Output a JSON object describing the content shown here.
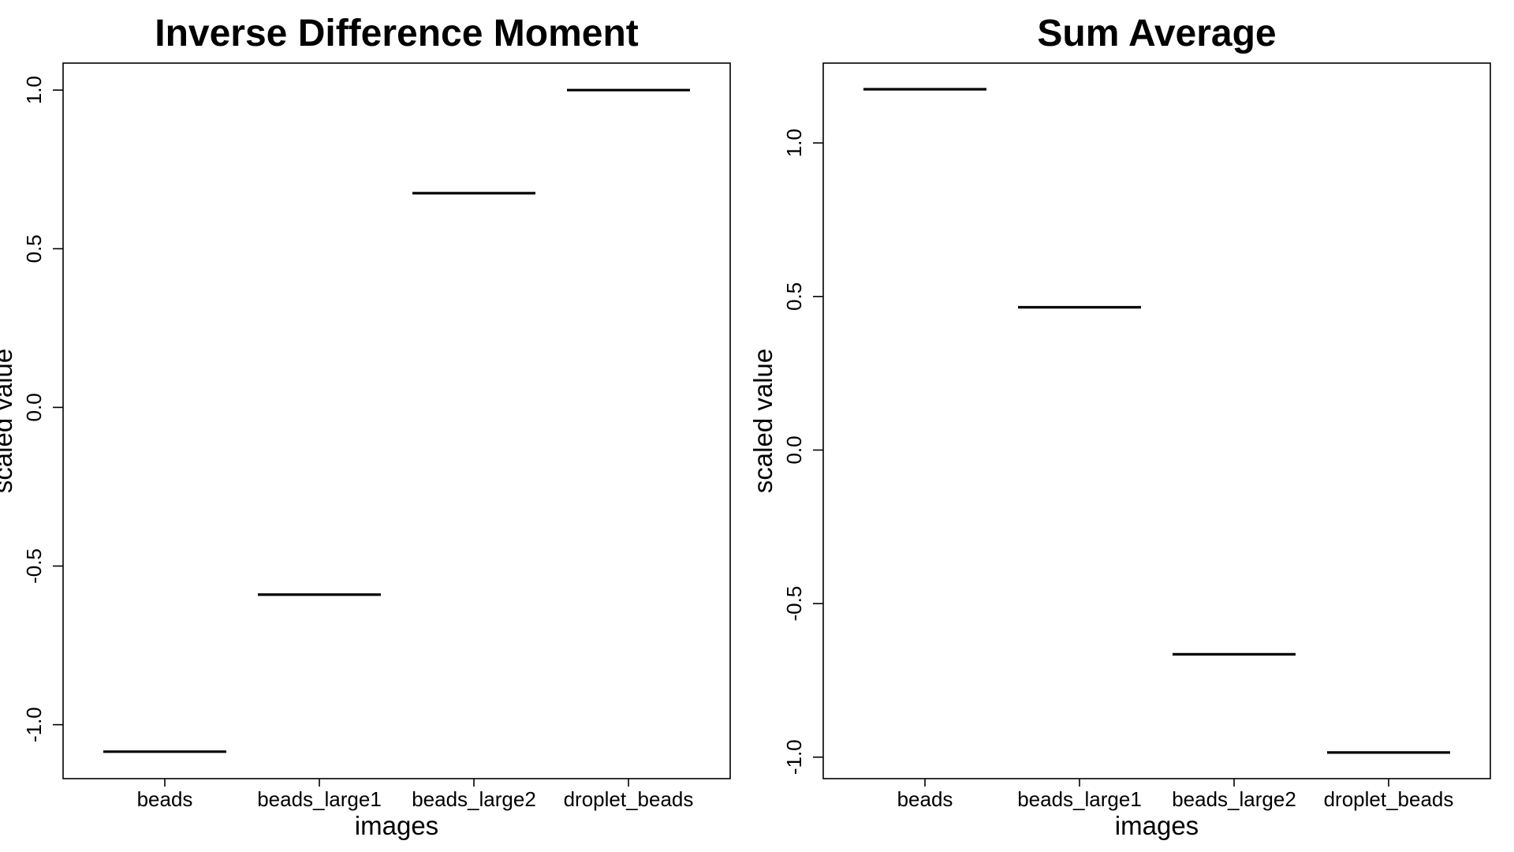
{
  "chart_data": [
    {
      "type": "bar",
      "title": "Inverse Difference Moment",
      "xlabel": "images",
      "ylabel": "scaled value",
      "categories": [
        "beads",
        "beads_large1",
        "beads_large2",
        "droplet_beads"
      ],
      "values": [
        -1.085,
        -0.59,
        0.675,
        1.0
      ],
      "ylim": [
        -1.17,
        1.085
      ],
      "yticks": [
        -1.0,
        -0.5,
        0.0,
        0.5,
        1.0
      ],
      "ytick_labels": [
        "-1.0",
        "-0.5",
        "0.0",
        "0.5",
        "1.0"
      ],
      "grid": false,
      "legend": "none"
    },
    {
      "type": "bar",
      "title": "Sum Average",
      "xlabel": "images",
      "ylabel": "scaled value",
      "categories": [
        "beads",
        "beads_large1",
        "beads_large2",
        "droplet_beads"
      ],
      "values": [
        1.175,
        0.465,
        -0.665,
        -0.985
      ],
      "ylim": [
        -1.07,
        1.26
      ],
      "yticks": [
        -1.0,
        -0.5,
        0.0,
        0.5,
        1.0
      ],
      "ytick_labels": [
        "-1.0",
        "-0.5",
        "0.0",
        "0.5",
        "1.0"
      ],
      "grid": false,
      "legend": "none"
    }
  ]
}
